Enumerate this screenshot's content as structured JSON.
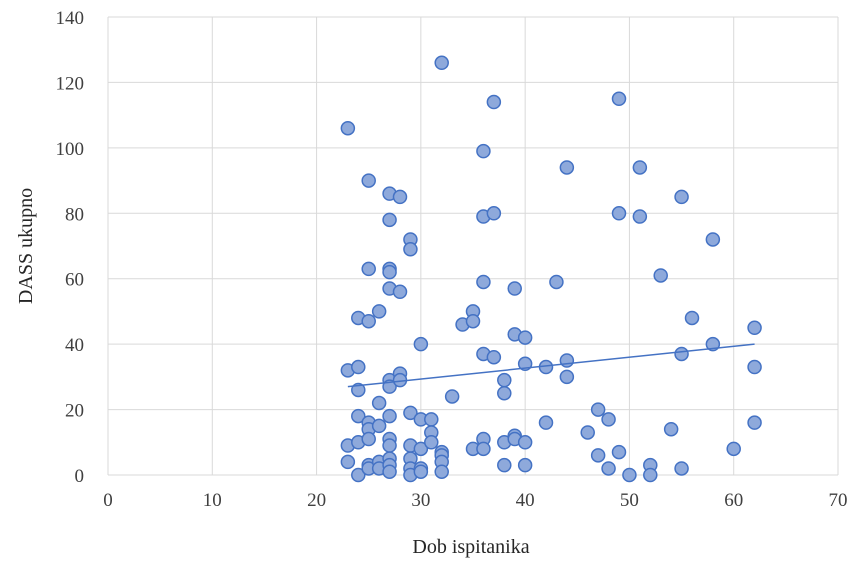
{
  "chart_data": {
    "type": "scatter",
    "xlabel": "Dob ispitanika",
    "ylabel": "DASS ukupno",
    "xlim": [
      0,
      70
    ],
    "ylim": [
      0,
      140
    ],
    "xticks": [
      0,
      10,
      20,
      30,
      40,
      50,
      60,
      70
    ],
    "yticks": [
      0,
      20,
      40,
      60,
      80,
      100,
      120,
      140
    ],
    "grid": true,
    "legend": "none",
    "colors": {
      "marker_fill": "#8ea9db",
      "marker_edge": "#4472c4",
      "trendline": "#4472c4"
    },
    "trendline": {
      "type": "linear",
      "x": [
        23,
        62
      ],
      "y": [
        27,
        40
      ]
    },
    "points": [
      {
        "x": 23,
        "y": 106
      },
      {
        "x": 23,
        "y": 32
      },
      {
        "x": 23,
        "y": 9
      },
      {
        "x": 23,
        "y": 4
      },
      {
        "x": 24,
        "y": 48
      },
      {
        "x": 24,
        "y": 33
      },
      {
        "x": 24,
        "y": 26
      },
      {
        "x": 24,
        "y": 18
      },
      {
        "x": 24,
        "y": 10
      },
      {
        "x": 24,
        "y": 0
      },
      {
        "x": 25,
        "y": 90
      },
      {
        "x": 25,
        "y": 63
      },
      {
        "x": 25,
        "y": 47
      },
      {
        "x": 25,
        "y": 16
      },
      {
        "x": 25,
        "y": 14
      },
      {
        "x": 25,
        "y": 11
      },
      {
        "x": 25,
        "y": 3
      },
      {
        "x": 25,
        "y": 2
      },
      {
        "x": 26,
        "y": 50
      },
      {
        "x": 26,
        "y": 22
      },
      {
        "x": 26,
        "y": 15
      },
      {
        "x": 26,
        "y": 4
      },
      {
        "x": 26,
        "y": 2
      },
      {
        "x": 27,
        "y": 86
      },
      {
        "x": 27,
        "y": 78
      },
      {
        "x": 27,
        "y": 63
      },
      {
        "x": 27,
        "y": 62
      },
      {
        "x": 27,
        "y": 57
      },
      {
        "x": 27,
        "y": 29
      },
      {
        "x": 27,
        "y": 27
      },
      {
        "x": 27,
        "y": 18
      },
      {
        "x": 27,
        "y": 11
      },
      {
        "x": 27,
        "y": 9
      },
      {
        "x": 27,
        "y": 5
      },
      {
        "x": 27,
        "y": 3
      },
      {
        "x": 27,
        "y": 1
      },
      {
        "x": 28,
        "y": 85
      },
      {
        "x": 28,
        "y": 56
      },
      {
        "x": 28,
        "y": 31
      },
      {
        "x": 28,
        "y": 29
      },
      {
        "x": 29,
        "y": 72
      },
      {
        "x": 29,
        "y": 69
      },
      {
        "x": 29,
        "y": 19
      },
      {
        "x": 29,
        "y": 9
      },
      {
        "x": 29,
        "y": 5
      },
      {
        "x": 29,
        "y": 2
      },
      {
        "x": 29,
        "y": 0
      },
      {
        "x": 30,
        "y": 40
      },
      {
        "x": 30,
        "y": 17
      },
      {
        "x": 30,
        "y": 8
      },
      {
        "x": 30,
        "y": 2
      },
      {
        "x": 30,
        "y": 1
      },
      {
        "x": 31,
        "y": 17
      },
      {
        "x": 31,
        "y": 13
      },
      {
        "x": 31,
        "y": 10
      },
      {
        "x": 32,
        "y": 126
      },
      {
        "x": 32,
        "y": 7
      },
      {
        "x": 32,
        "y": 6
      },
      {
        "x": 32,
        "y": 4
      },
      {
        "x": 32,
        "y": 1
      },
      {
        "x": 33,
        "y": 24
      },
      {
        "x": 34,
        "y": 46
      },
      {
        "x": 35,
        "y": 50
      },
      {
        "x": 35,
        "y": 47
      },
      {
        "x": 35,
        "y": 8
      },
      {
        "x": 36,
        "y": 99
      },
      {
        "x": 36,
        "y": 79
      },
      {
        "x": 36,
        "y": 59
      },
      {
        "x": 36,
        "y": 37
      },
      {
        "x": 36,
        "y": 11
      },
      {
        "x": 36,
        "y": 8
      },
      {
        "x": 37,
        "y": 114
      },
      {
        "x": 37,
        "y": 80
      },
      {
        "x": 37,
        "y": 36
      },
      {
        "x": 38,
        "y": 29
      },
      {
        "x": 38,
        "y": 25
      },
      {
        "x": 38,
        "y": 10
      },
      {
        "x": 38,
        "y": 3
      },
      {
        "x": 39,
        "y": 57
      },
      {
        "x": 39,
        "y": 43
      },
      {
        "x": 39,
        "y": 12
      },
      {
        "x": 39,
        "y": 11
      },
      {
        "x": 40,
        "y": 42
      },
      {
        "x": 40,
        "y": 34
      },
      {
        "x": 40,
        "y": 10
      },
      {
        "x": 40,
        "y": 3
      },
      {
        "x": 42,
        "y": 33
      },
      {
        "x": 42,
        "y": 16
      },
      {
        "x": 43,
        "y": 59
      },
      {
        "x": 44,
        "y": 94
      },
      {
        "x": 44,
        "y": 35
      },
      {
        "x": 44,
        "y": 30
      },
      {
        "x": 46,
        "y": 13
      },
      {
        "x": 47,
        "y": 20
      },
      {
        "x": 47,
        "y": 6
      },
      {
        "x": 48,
        "y": 17
      },
      {
        "x": 48,
        "y": 2
      },
      {
        "x": 49,
        "y": 115
      },
      {
        "x": 49,
        "y": 80
      },
      {
        "x": 49,
        "y": 7
      },
      {
        "x": 50,
        "y": 0
      },
      {
        "x": 51,
        "y": 94
      },
      {
        "x": 51,
        "y": 79
      },
      {
        "x": 52,
        "y": 3
      },
      {
        "x": 52,
        "y": 0
      },
      {
        "x": 53,
        "y": 61
      },
      {
        "x": 54,
        "y": 14
      },
      {
        "x": 55,
        "y": 85
      },
      {
        "x": 55,
        "y": 37
      },
      {
        "x": 55,
        "y": 2
      },
      {
        "x": 56,
        "y": 48
      },
      {
        "x": 58,
        "y": 72
      },
      {
        "x": 58,
        "y": 40
      },
      {
        "x": 60,
        "y": 8
      },
      {
        "x": 62,
        "y": 45
      },
      {
        "x": 62,
        "y": 33
      },
      {
        "x": 62,
        "y": 16
      }
    ]
  }
}
